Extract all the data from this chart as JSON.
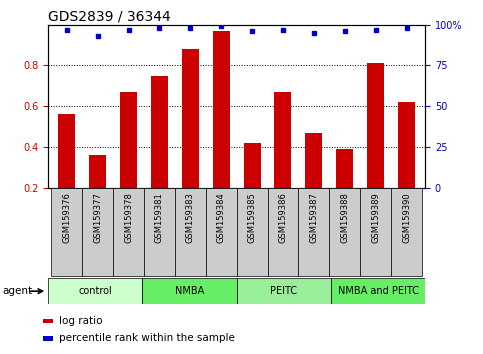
{
  "title": "GDS2839 / 36344",
  "samples": [
    "GSM159376",
    "GSM159377",
    "GSM159378",
    "GSM159381",
    "GSM159383",
    "GSM159384",
    "GSM159385",
    "GSM159386",
    "GSM159387",
    "GSM159388",
    "GSM159389",
    "GSM159390"
  ],
  "log_ratio": [
    0.56,
    0.36,
    0.67,
    0.75,
    0.88,
    0.97,
    0.42,
    0.67,
    0.47,
    0.39,
    0.81,
    0.62
  ],
  "percentile": [
    97,
    93,
    97,
    98,
    98,
    99,
    96,
    97,
    95,
    96,
    97,
    98
  ],
  "bar_color": "#cc0000",
  "dot_color": "#0000cc",
  "ylim_left": [
    0.2,
    1.0
  ],
  "ylim_right": [
    0,
    100
  ],
  "yticks_left": [
    0.2,
    0.4,
    0.6,
    0.8
  ],
  "yticks_right": [
    0,
    25,
    50,
    75,
    100
  ],
  "yticklabels_right": [
    "0",
    "25",
    "50",
    "75",
    "100%"
  ],
  "groups": [
    {
      "label": "control",
      "start": 0,
      "end": 3,
      "color": "#ccffcc"
    },
    {
      "label": "NMBA",
      "start": 3,
      "end": 6,
      "color": "#66ee66"
    },
    {
      "label": "PEITC",
      "start": 6,
      "end": 9,
      "color": "#99ee99"
    },
    {
      "label": "NMBA and PEITC",
      "start": 9,
      "end": 12,
      "color": "#66ee66"
    }
  ],
  "agent_label": "agent",
  "legend_items": [
    {
      "color": "#cc0000",
      "label": "log ratio"
    },
    {
      "color": "#0000cc",
      "label": "percentile rank within the sample"
    }
  ],
  "bg_color": "#ffffff",
  "plot_bg_color": "#ffffff",
  "grid_color": "#000000",
  "bar_width": 0.55,
  "title_fontsize": 10,
  "tick_fontsize": 7,
  "sample_fontsize": 6,
  "axis_label_color_left": "#cc0000",
  "axis_label_color_right": "#0000cc",
  "label_box_color": "#cccccc"
}
